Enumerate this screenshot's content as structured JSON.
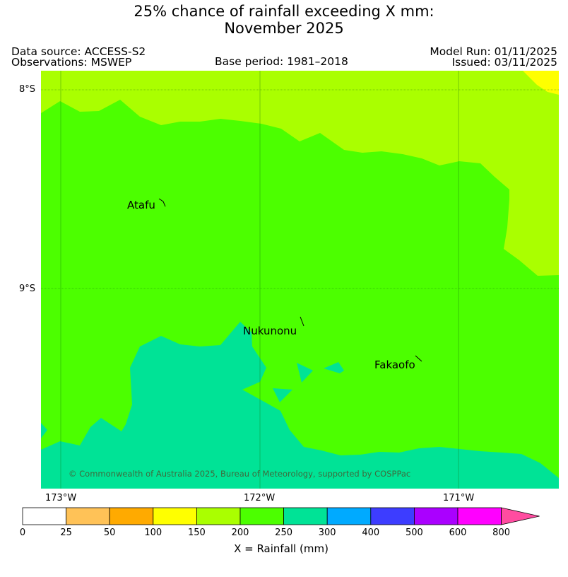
{
  "title_line1": "25% chance of rainfall exceeding X mm:",
  "title_line2": "November 2025",
  "header": {
    "data_source": "Data source: ACCESS-S2",
    "observations": "Observations: MSWEP",
    "base_period": "Base period: 1981–2018",
    "model_run": "Model Run: 01/11/2025",
    "issued": "Issued: 03/11/2025"
  },
  "map": {
    "lat_ticks": [
      "8°S",
      "9°S"
    ],
    "lon_ticks": [
      "173°W",
      "172°W",
      "171°W"
    ],
    "places": [
      "Atafu",
      "Nukunonu",
      "Fakaofo"
    ],
    "copyright": "© Commonwealth of Australia 2025, Bureau of Meteorology, supported by COSPPac",
    "colors": {
      "c150_200": "#aaff00",
      "c200_250": "#4cff00",
      "c250_300": "#00e396",
      "c100_150": "#ffff00"
    }
  },
  "colorbar": {
    "labels": [
      "0",
      "25",
      "50",
      "100",
      "150",
      "200",
      "250",
      "300",
      "400",
      "500",
      "600",
      "800"
    ],
    "colors": [
      "#ffffff",
      "#ffc257",
      "#ffaa00",
      "#ffff00",
      "#aaff00",
      "#4cff00",
      "#00e396",
      "#00aaff",
      "#3d3dff",
      "#aa00ff",
      "#ff00ff",
      "#ff4ca0"
    ],
    "xlabel": "X = Rainfall (mm)"
  }
}
